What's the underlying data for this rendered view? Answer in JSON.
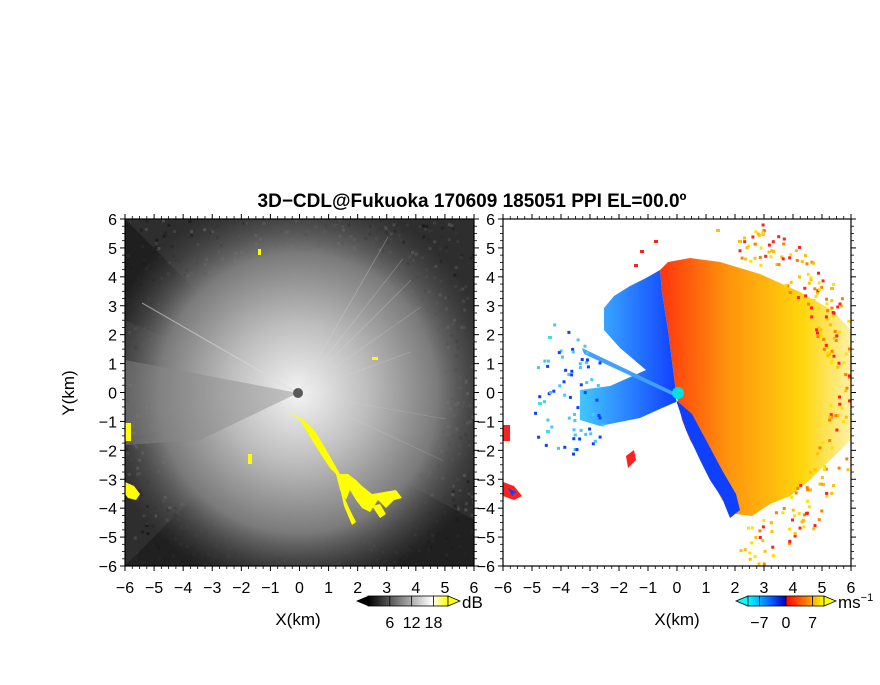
{
  "title": "3D−CDL@Fukuoka 170609 185051 PPI EL=00.0º",
  "chart_data": [
    {
      "type": "heatmap",
      "panel": "left",
      "description_units": "dB",
      "xlabel": "X(km)",
      "ylabel": "Y(km)",
      "xlim": [
        -6,
        6
      ],
      "ylim": [
        -6,
        6
      ],
      "xticks": [
        "−6",
        "−5",
        "−4",
        "−3",
        "−2",
        "−1",
        "0",
        "1",
        "2",
        "3",
        "4",
        "5",
        "6"
      ],
      "yticks": [
        "−6",
        "−5",
        "−4",
        "−3",
        "−2",
        "−1",
        "0",
        "1",
        "2",
        "3",
        "4",
        "5",
        "6"
      ],
      "colorbar": {
        "unit": "dB",
        "ticks": [
          "6",
          "12",
          "18"
        ],
        "tick_values": [
          6,
          12,
          18
        ],
        "range": [
          0,
          22
        ],
        "colors": [
          "#000000",
          "#ffffff",
          "#ffff00"
        ]
      },
      "colors": {
        "background": "#2b2b2b",
        "bright": "#e8e8e8",
        "clutter": "#ffff00"
      }
    },
    {
      "type": "heatmap",
      "panel": "right",
      "description_units": "ms⁻¹",
      "xlabel": "X(km)",
      "ylabel": "",
      "xlim": [
        -6,
        6
      ],
      "ylim": [
        -6,
        6
      ],
      "xticks": [
        "−6",
        "−5",
        "−4",
        "−3",
        "−2",
        "−1",
        "0",
        "1",
        "2",
        "3",
        "4",
        "5",
        "6"
      ],
      "colorbar": {
        "unit": "ms",
        "unit_sup": "−1",
        "ticks": [
          "−7",
          "0",
          "7"
        ],
        "tick_values": [
          -7,
          0,
          7
        ],
        "range": [
          -10,
          10
        ],
        "colors": [
          "#00ffff",
          "#0000ff",
          "#ff0000",
          "#ffff00"
        ]
      },
      "colors": {
        "negative": "#1e64ff",
        "positive": "#ff7a00",
        "far_positive": "#ffe000",
        "outline_neg": "#0000ff",
        "outline_pos": "#ff0000"
      }
    }
  ]
}
